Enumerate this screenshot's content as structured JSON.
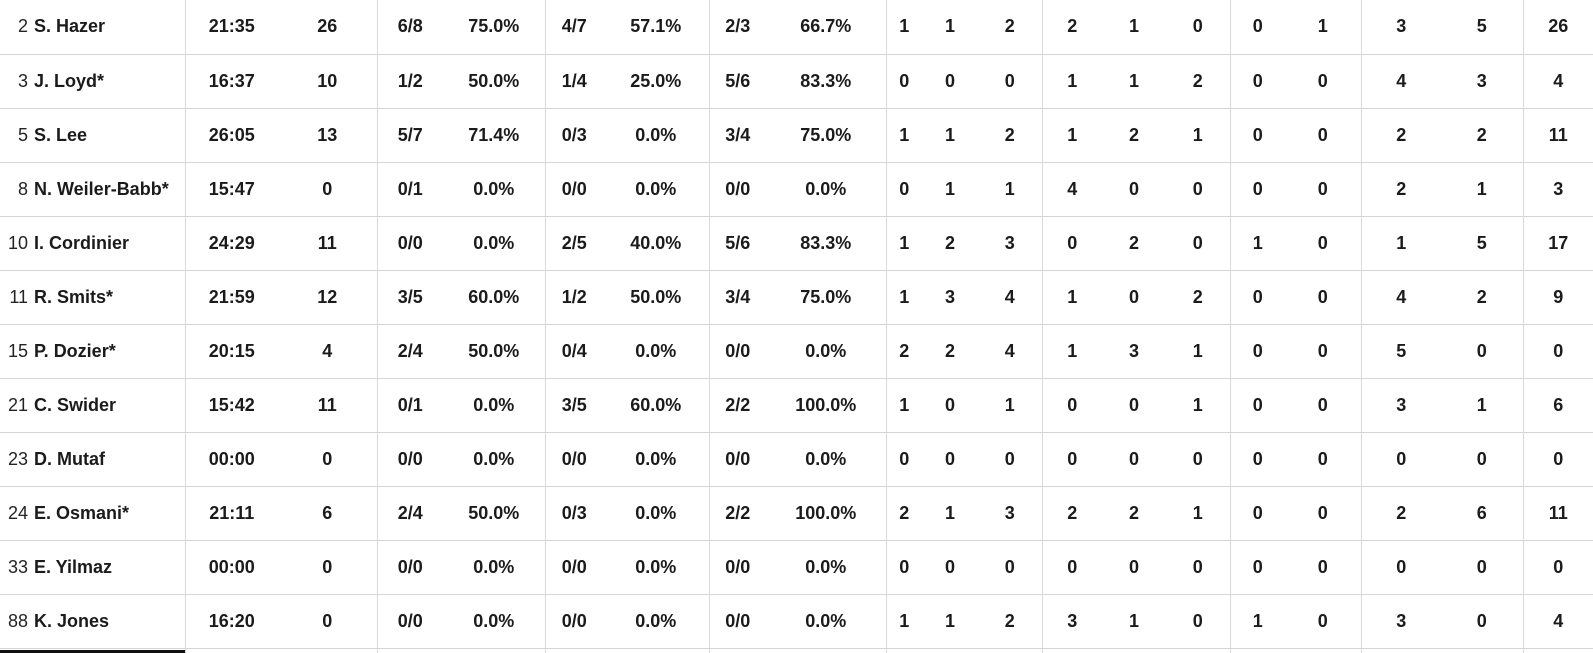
{
  "colors": {
    "background": "#ffffff",
    "text": "#1b1b1b",
    "grid_vertical": "#d9d9d9",
    "grid_horizontal": "#d4d4d4",
    "bottom_bar": "#101010"
  },
  "table": {
    "rows": [
      {
        "number": "2",
        "name": "S. Hazer",
        "values": [
          "21:35",
          "26",
          "6/8",
          "75.0%",
          "4/7",
          "57.1%",
          "2/3",
          "66.7%",
          "1",
          "1",
          "2",
          "2",
          "1",
          "0",
          "0",
          "1",
          "3",
          "5",
          "26"
        ]
      },
      {
        "number": "3",
        "name": "J. Loyd*",
        "values": [
          "16:37",
          "10",
          "1/2",
          "50.0%",
          "1/4",
          "25.0%",
          "5/6",
          "83.3%",
          "0",
          "0",
          "0",
          "1",
          "1",
          "2",
          "0",
          "0",
          "4",
          "3",
          "4"
        ]
      },
      {
        "number": "5",
        "name": "S. Lee",
        "values": [
          "26:05",
          "13",
          "5/7",
          "71.4%",
          "0/3",
          "0.0%",
          "3/4",
          "75.0%",
          "1",
          "1",
          "2",
          "1",
          "2",
          "1",
          "0",
          "0",
          "2",
          "2",
          "11"
        ]
      },
      {
        "number": "8",
        "name": "N. Weiler-Babb*",
        "values": [
          "15:47",
          "0",
          "0/1",
          "0.0%",
          "0/0",
          "0.0%",
          "0/0",
          "0.0%",
          "0",
          "1",
          "1",
          "4",
          "0",
          "0",
          "0",
          "0",
          "2",
          "1",
          "3"
        ]
      },
      {
        "number": "10",
        "name": "I. Cordinier",
        "values": [
          "24:29",
          "11",
          "0/0",
          "0.0%",
          "2/5",
          "40.0%",
          "5/6",
          "83.3%",
          "1",
          "2",
          "3",
          "0",
          "2",
          "0",
          "1",
          "0",
          "1",
          "5",
          "17"
        ]
      },
      {
        "number": "11",
        "name": "R. Smits*",
        "values": [
          "21:59",
          "12",
          "3/5",
          "60.0%",
          "1/2",
          "50.0%",
          "3/4",
          "75.0%",
          "1",
          "3",
          "4",
          "1",
          "0",
          "2",
          "0",
          "0",
          "4",
          "2",
          "9"
        ]
      },
      {
        "number": "15",
        "name": "P. Dozier*",
        "values": [
          "20:15",
          "4",
          "2/4",
          "50.0%",
          "0/4",
          "0.0%",
          "0/0",
          "0.0%",
          "2",
          "2",
          "4",
          "1",
          "3",
          "1",
          "0",
          "0",
          "5",
          "0",
          "0"
        ]
      },
      {
        "number": "21",
        "name": "C. Swider",
        "values": [
          "15:42",
          "11",
          "0/1",
          "0.0%",
          "3/5",
          "60.0%",
          "2/2",
          "100.0%",
          "1",
          "0",
          "1",
          "0",
          "0",
          "1",
          "0",
          "0",
          "3",
          "1",
          "6"
        ]
      },
      {
        "number": "23",
        "name": "D. Mutaf",
        "values": [
          "00:00",
          "0",
          "0/0",
          "0.0%",
          "0/0",
          "0.0%",
          "0/0",
          "0.0%",
          "0",
          "0",
          "0",
          "0",
          "0",
          "0",
          "0",
          "0",
          "0",
          "0",
          "0"
        ]
      },
      {
        "number": "24",
        "name": "E. Osmani*",
        "values": [
          "21:11",
          "6",
          "2/4",
          "50.0%",
          "0/3",
          "0.0%",
          "2/2",
          "100.0%",
          "2",
          "1",
          "3",
          "2",
          "2",
          "1",
          "0",
          "0",
          "2",
          "6",
          "11"
        ]
      },
      {
        "number": "33",
        "name": "E. Yilmaz",
        "values": [
          "00:00",
          "0",
          "0/0",
          "0.0%",
          "0/0",
          "0.0%",
          "0/0",
          "0.0%",
          "0",
          "0",
          "0",
          "0",
          "0",
          "0",
          "0",
          "0",
          "0",
          "0",
          "0"
        ]
      },
      {
        "number": "88",
        "name": "K. Jones",
        "values": [
          "16:20",
          "0",
          "0/0",
          "0.0%",
          "0/0",
          "0.0%",
          "0/0",
          "0.0%",
          "1",
          "1",
          "2",
          "3",
          "1",
          "0",
          "1",
          "0",
          "3",
          "0",
          "4"
        ]
      }
    ]
  }
}
